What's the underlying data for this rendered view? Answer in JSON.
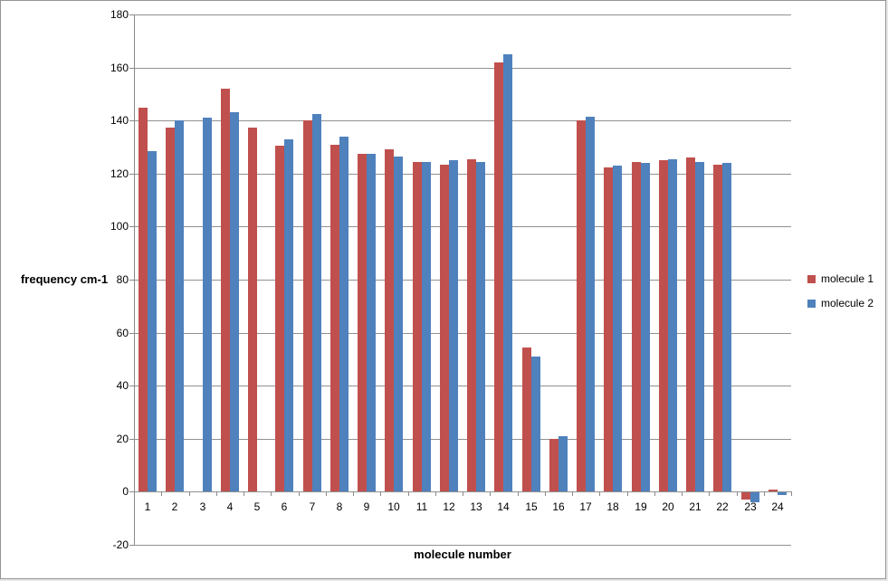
{
  "chart_data": {
    "type": "bar",
    "title": "",
    "xlabel": "molecule number",
    "ylabel": "frequency cm-1",
    "categories": [
      "1",
      "2",
      "3",
      "4",
      "5",
      "6",
      "7",
      "8",
      "9",
      "10",
      "11",
      "12",
      "13",
      "14",
      "15",
      "16",
      "17",
      "18",
      "19",
      "20",
      "21",
      "22",
      "23",
      "24"
    ],
    "series": [
      {
        "name": "molecule 1",
        "color": "#C0504D",
        "values": [
          145,
          137.5,
          null,
          152,
          137.5,
          130.5,
          140,
          131,
          127.5,
          129,
          124.5,
          123.5,
          125.5,
          162,
          54.5,
          20,
          140,
          122.5,
          124.5,
          125,
          126,
          123.5,
          -2.5,
          1
        ]
      },
      {
        "name": "molecule 2",
        "color": "#4F81BD",
        "values": [
          128.5,
          140,
          141,
          143,
          null,
          133,
          142.5,
          134,
          127.5,
          126.5,
          124.5,
          125,
          124.5,
          165,
          51,
          21,
          141.5,
          123,
          124,
          125.5,
          124.5,
          124,
          -3.5,
          -1
        ]
      }
    ],
    "ylim": [
      -20,
      180
    ],
    "y_ticks": [
      180,
      160,
      140,
      120,
      100,
      80,
      60,
      40,
      20,
      0,
      -20
    ],
    "grid": true,
    "grid_color": "#919191",
    "axis_color": "#8a8a8a",
    "background_color": "#ffffff",
    "legend_position": "right"
  }
}
